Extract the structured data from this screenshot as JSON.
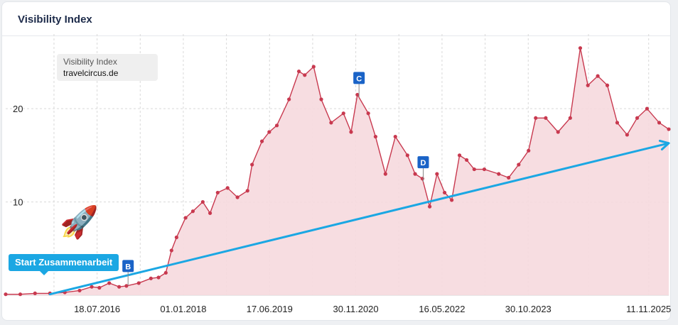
{
  "card": {
    "title": "Visibility Index"
  },
  "legend": {
    "series": "Visibility Index",
    "domain": "travelcircus.de"
  },
  "annotation": {
    "start_label": "Start Zusammenarbeit",
    "rocket": "🚀"
  },
  "colors": {
    "line": "#c8394f",
    "fill": "#f6d9de",
    "trend": "#1ba7e3",
    "marker": "#1a63c7",
    "grid": "#d9d9d9",
    "label": "#222222"
  },
  "chart_data": {
    "type": "area",
    "x_range": [
      "2015-01-01",
      "2026-03-15"
    ],
    "ylim": [
      0,
      28
    ],
    "yticks": [
      10,
      20
    ],
    "x_tick_labels": [
      "18.07.2016",
      "01.01.2018",
      "17.06.2019",
      "30.11.2020",
      "16.05.2022",
      "30.10.2023",
      "11.11.2025"
    ],
    "grid": true,
    "series": [
      {
        "name": "travelcircus.de",
        "points": [
          [
            "2015-01-01",
            0.1
          ],
          [
            "2015-04-01",
            0.1
          ],
          [
            "2015-07-01",
            0.2
          ],
          [
            "2015-10-01",
            0.2
          ],
          [
            "2016-01-01",
            0.3
          ],
          [
            "2016-04-01",
            0.5
          ],
          [
            "2016-06-15",
            0.9
          ],
          [
            "2016-08-01",
            0.8
          ],
          [
            "2016-10-01",
            1.3
          ],
          [
            "2016-12-01",
            0.9
          ],
          [
            "2017-01-15",
            1.0
          ],
          [
            "2017-04-01",
            1.3
          ],
          [
            "2017-06-15",
            1.8
          ],
          [
            "2017-08-01",
            1.9
          ],
          [
            "2017-09-15",
            2.4
          ],
          [
            "2017-10-20",
            4.8
          ],
          [
            "2017-11-20",
            6.2
          ],
          [
            "2018-01-15",
            8.3
          ],
          [
            "2018-03-01",
            9.0
          ],
          [
            "2018-05-01",
            10.0
          ],
          [
            "2018-06-15",
            8.8
          ],
          [
            "2018-08-01",
            11.0
          ],
          [
            "2018-10-01",
            11.5
          ],
          [
            "2018-12-01",
            10.5
          ],
          [
            "2019-02-01",
            11.2
          ],
          [
            "2019-03-01",
            14.0
          ],
          [
            "2019-05-01",
            16.5
          ],
          [
            "2019-06-15",
            17.5
          ],
          [
            "2019-08-01",
            18.2
          ],
          [
            "2019-10-15",
            21.0
          ],
          [
            "2019-12-15",
            24.0
          ],
          [
            "2020-01-20",
            23.6
          ],
          [
            "2020-03-15",
            24.5
          ],
          [
            "2020-05-01",
            21.0
          ],
          [
            "2020-07-01",
            18.5
          ],
          [
            "2020-09-15",
            19.5
          ],
          [
            "2020-11-01",
            17.5
          ],
          [
            "2020-12-10",
            21.5
          ],
          [
            "2021-02-15",
            19.5
          ],
          [
            "2021-04-01",
            17.0
          ],
          [
            "2021-06-01",
            13.0
          ],
          [
            "2021-08-01",
            17.0
          ],
          [
            "2021-10-15",
            15.0
          ],
          [
            "2021-12-01",
            13.0
          ],
          [
            "2022-01-15",
            12.5
          ],
          [
            "2022-03-01",
            9.5
          ],
          [
            "2022-04-15",
            13.0
          ],
          [
            "2022-06-01",
            11.0
          ],
          [
            "2022-07-15",
            10.2
          ],
          [
            "2022-09-01",
            15.0
          ],
          [
            "2022-10-15",
            14.5
          ],
          [
            "2022-12-01",
            13.5
          ],
          [
            "2023-02-01",
            13.5
          ],
          [
            "2023-05-01",
            13.0
          ],
          [
            "2023-07-01",
            12.6
          ],
          [
            "2023-09-01",
            14.0
          ],
          [
            "2023-11-01",
            15.5
          ],
          [
            "2023-12-15",
            19.0
          ],
          [
            "2024-02-15",
            19.0
          ],
          [
            "2024-05-01",
            17.5
          ],
          [
            "2024-07-15",
            19.0
          ],
          [
            "2024-09-15",
            26.5
          ],
          [
            "2024-11-01",
            22.5
          ],
          [
            "2025-01-01",
            23.5
          ],
          [
            "2025-03-01",
            22.5
          ],
          [
            "2025-05-01",
            18.5
          ],
          [
            "2025-07-01",
            17.2
          ],
          [
            "2025-09-01",
            19.0
          ],
          [
            "2025-11-01",
            20.0
          ],
          [
            "2026-01-15",
            18.5
          ],
          [
            "2026-03-15",
            17.8
          ]
        ]
      }
    ],
    "trend_line": {
      "from": [
        "2015-10-01",
        0.1
      ],
      "to": [
        "2026-03-15",
        16.3
      ]
    },
    "markers": [
      {
        "label": "B",
        "date": "2017-01-25"
      },
      {
        "label": "C",
        "date": "2020-12-20"
      },
      {
        "label": "D",
        "date": "2022-01-20"
      }
    ]
  }
}
